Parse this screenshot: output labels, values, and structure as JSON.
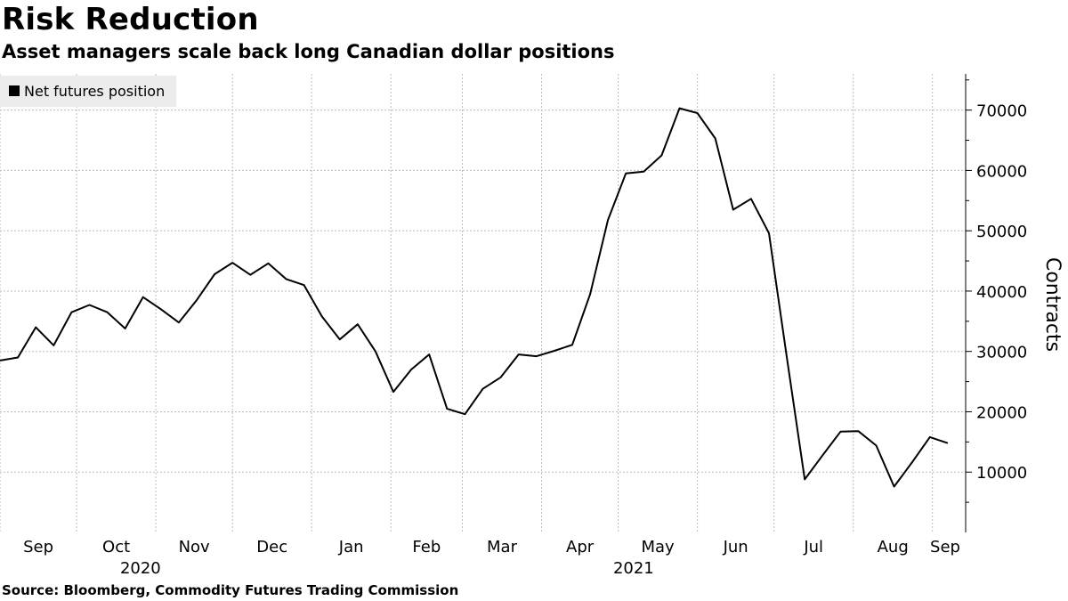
{
  "title": "Risk Reduction",
  "subtitle": "Asset managers scale back long Canadian dollar positions",
  "source": "Source: Bloomberg, Commodity Futures Trading Commission",
  "chart_data": {
    "type": "line",
    "legend": "top-left",
    "grid": true,
    "ylabel": "Contracts",
    "yticks": [
      10000,
      20000,
      30000,
      40000,
      50000,
      60000,
      70000
    ],
    "ylim": [
      0,
      76000
    ],
    "xlim": [
      "2020-09-01",
      "2021-09-14"
    ],
    "xticks": [
      {
        "date": "2020-09-01",
        "label": "Sep"
      },
      {
        "date": "2020-10-01",
        "label": "Oct"
      },
      {
        "date": "2020-11-01",
        "label": "Nov"
      },
      {
        "date": "2020-12-01",
        "label": "Dec"
      },
      {
        "date": "2021-01-01",
        "label": "Jan"
      },
      {
        "date": "2021-02-01",
        "label": "Feb"
      },
      {
        "date": "2021-03-01",
        "label": "Mar"
      },
      {
        "date": "2021-04-01",
        "label": "Apr"
      },
      {
        "date": "2021-05-01",
        "label": "May"
      },
      {
        "date": "2021-06-01",
        "label": "Jun"
      },
      {
        "date": "2021-07-01",
        "label": "Jul"
      },
      {
        "date": "2021-08-01",
        "label": "Aug"
      },
      {
        "date": "2021-09-01",
        "label": "Sep"
      }
    ],
    "year_labels": [
      {
        "label": "2020",
        "date": "2020-10-26"
      },
      {
        "label": "2021",
        "date": "2021-05-07"
      }
    ],
    "series": [
      {
        "name": "Net futures position",
        "color": "#000000",
        "x": [
          "2020-09-01",
          "2020-09-08",
          "2020-09-15",
          "2020-09-22",
          "2020-09-29",
          "2020-10-06",
          "2020-10-13",
          "2020-10-20",
          "2020-10-27",
          "2020-11-03",
          "2020-11-10",
          "2020-11-17",
          "2020-11-24",
          "2020-12-01",
          "2020-12-08",
          "2020-12-15",
          "2020-12-22",
          "2020-12-29",
          "2021-01-05",
          "2021-01-12",
          "2021-01-19",
          "2021-01-26",
          "2021-02-02",
          "2021-02-09",
          "2021-02-16",
          "2021-02-23",
          "2021-03-02",
          "2021-03-09",
          "2021-03-16",
          "2021-03-23",
          "2021-03-30",
          "2021-04-06",
          "2021-04-13",
          "2021-04-20",
          "2021-04-27",
          "2021-05-04",
          "2021-05-11",
          "2021-05-18",
          "2021-05-25",
          "2021-06-01",
          "2021-06-08",
          "2021-06-15",
          "2021-06-22",
          "2021-06-29",
          "2021-07-06",
          "2021-07-13",
          "2021-07-20",
          "2021-07-27",
          "2021-08-03",
          "2021-08-10",
          "2021-08-17",
          "2021-08-24",
          "2021-08-31",
          "2021-09-07"
        ],
        "values": [
          28500,
          29000,
          34000,
          31000,
          36500,
          37700,
          36500,
          33800,
          39000,
          37000,
          34800,
          38500,
          42800,
          44700,
          42700,
          44600,
          42000,
          41000,
          35800,
          32000,
          34500,
          30000,
          23300,
          27000,
          29500,
          20500,
          19600,
          23800,
          25700,
          29500,
          29200,
          30100,
          31100,
          39500,
          51800,
          59500,
          59800,
          62500,
          70300,
          69500,
          65300,
          53500,
          55300,
          49600,
          29000,
          8800,
          12800,
          16700,
          16800,
          14400,
          7600,
          11600,
          15800,
          14800
        ]
      }
    ]
  }
}
